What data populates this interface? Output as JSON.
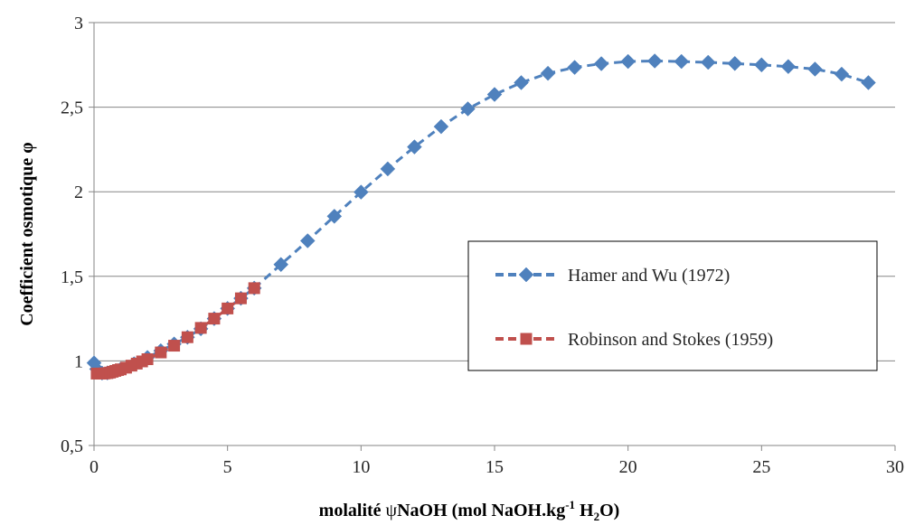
{
  "chart_data": {
    "type": "line",
    "title": "",
    "xlabel": {
      "prefix": "molalité ",
      "symbol": "ψ",
      "middle": "NaOH (mol NaOH.kg",
      "sup": "-1",
      "after_sup": " H",
      "sub": "2",
      "end": "O)"
    },
    "ylabel": "Coefficient osmotique φ",
    "xlim": [
      0,
      30
    ],
    "ylim": [
      0.5,
      3
    ],
    "xticks": [
      0,
      5,
      10,
      15,
      20,
      25,
      30
    ],
    "xtick_labels": [
      "0",
      "5",
      "10",
      "15",
      "20",
      "25",
      "30"
    ],
    "yticks": [
      0.5,
      1,
      1.5,
      2,
      2.5,
      3
    ],
    "ytick_labels": [
      "0,5",
      "1",
      "1,5",
      "2",
      "2,5",
      "3"
    ],
    "grid": "horizontal",
    "legend_position": "center-right",
    "series": [
      {
        "name": "Hamer and Wu (1972)",
        "color": "#4f81bd",
        "marker": "diamond",
        "line_style": "dashed",
        "x": [
          0.001,
          0.1,
          0.2,
          0.3,
          0.5,
          0.7,
          1,
          1.5,
          2,
          2.5,
          3,
          3.5,
          4,
          4.5,
          5,
          5.5,
          6,
          7,
          8,
          9,
          10,
          11,
          12,
          13,
          14,
          15,
          16,
          17,
          18,
          19,
          20,
          21,
          22,
          23,
          24,
          25,
          26,
          27,
          28,
          29
        ],
        "y": [
          0.988,
          0.952,
          0.935,
          0.928,
          0.929,
          0.936,
          0.952,
          0.983,
          1.02,
          1.06,
          1.1,
          1.14,
          1.19,
          1.25,
          1.31,
          1.37,
          1.43,
          1.57,
          1.71,
          1.855,
          1.998,
          2.135,
          2.265,
          2.385,
          2.49,
          2.575,
          2.645,
          2.7,
          2.735,
          2.757,
          2.77,
          2.773,
          2.77,
          2.765,
          2.758,
          2.75,
          2.74,
          2.725,
          2.695,
          2.645
        ]
      },
      {
        "name": "Robinson and Stokes (1959)",
        "color": "#c0504d",
        "marker": "square",
        "line_style": "dashed",
        "x": [
          0.1,
          0.2,
          0.3,
          0.4,
          0.5,
          0.6,
          0.7,
          0.8,
          0.9,
          1,
          1.2,
          1.4,
          1.6,
          1.8,
          2,
          2.5,
          3,
          3.5,
          4,
          4.5,
          5,
          5.5,
          6
        ],
        "y": [
          0.925,
          0.925,
          0.925,
          0.926,
          0.928,
          0.931,
          0.936,
          0.941,
          0.946,
          0.95,
          0.96,
          0.972,
          0.984,
          0.997,
          1.01,
          1.05,
          1.09,
          1.14,
          1.195,
          1.25,
          1.31,
          1.37,
          1.43
        ]
      }
    ]
  }
}
